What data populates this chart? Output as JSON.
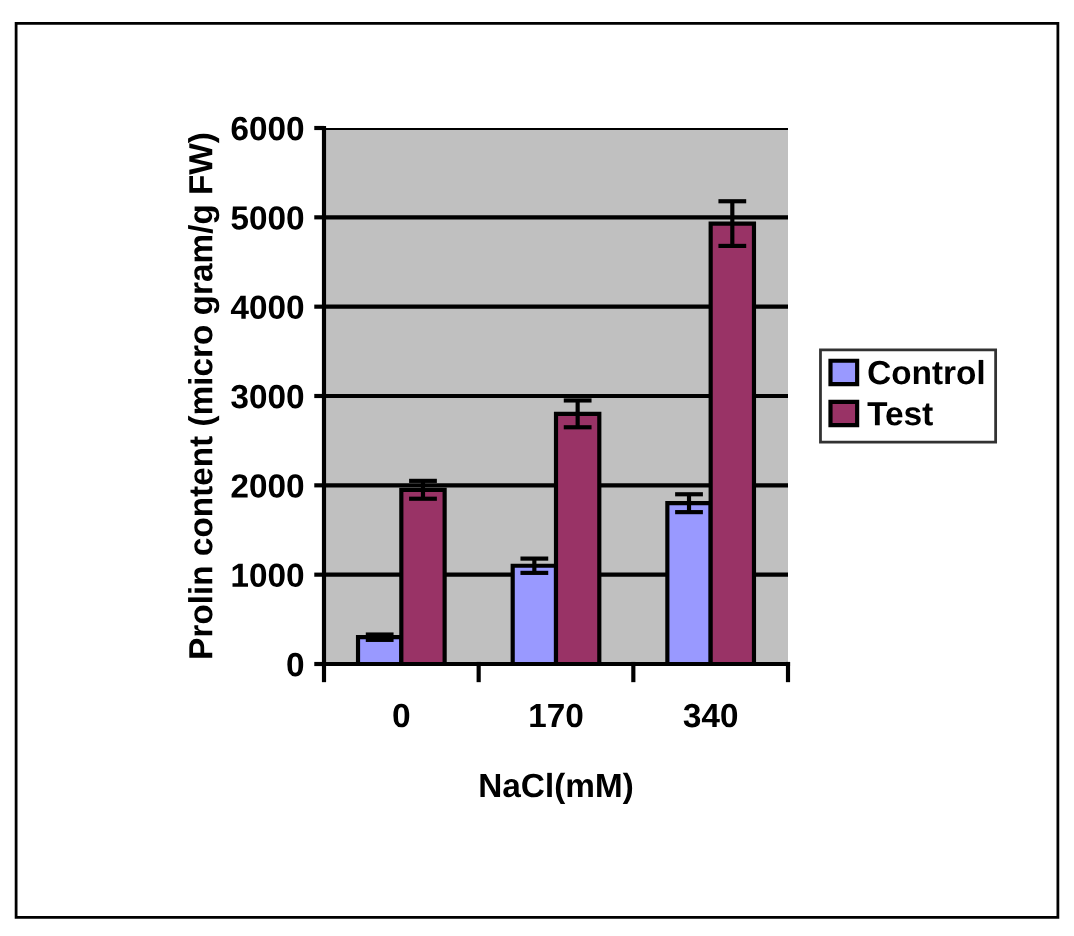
{
  "chart_data": {
    "type": "bar",
    "xlabel": "NaCl(mM)",
    "ylabel": "Prolin content (micro gram/g FW)",
    "categories": [
      "0",
      "170",
      "340"
    ],
    "series": [
      {
        "name": "Control",
        "color": "#9999ff",
        "values": [
          300,
          1100,
          1800
        ],
        "errors": [
          30,
          80,
          100
        ]
      },
      {
        "name": "Test",
        "color": "#993366",
        "values": [
          1950,
          2800,
          4930
        ],
        "errors": [
          100,
          150,
          250
        ]
      }
    ],
    "ylim": [
      0,
      6000
    ],
    "yticks": [
      0,
      1000,
      2000,
      3000,
      4000,
      5000,
      6000
    ],
    "grid": "y",
    "legend": "right"
  }
}
